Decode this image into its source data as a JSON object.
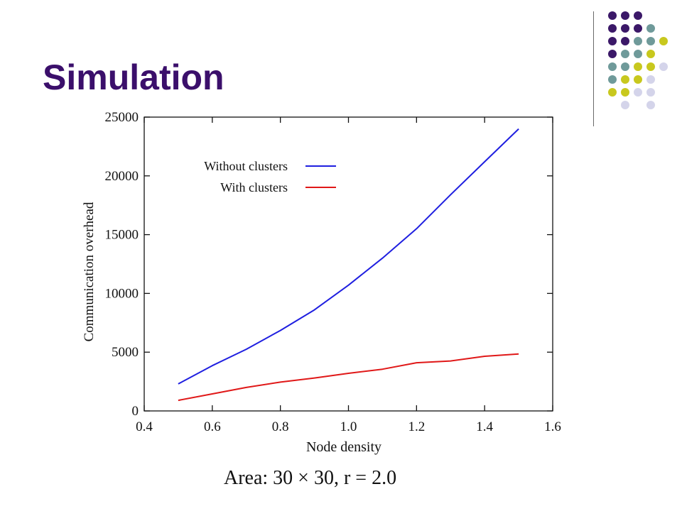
{
  "slide": {
    "title": "Simulation",
    "caption": "Area: 30 × 30, r = 2.0"
  },
  "decoration": {
    "dot_colors": {
      "purple": "#3b1868",
      "teal": "#6f9a9a",
      "yellow": "#c8c81e",
      "lavender": "#d4d4ea"
    },
    "dot_grid": [
      [
        "purple",
        "purple",
        "purple",
        "",
        ""
      ],
      [
        "purple",
        "purple",
        "purple",
        "teal",
        ""
      ],
      [
        "purple",
        "purple",
        "teal",
        "teal",
        "yellow"
      ],
      [
        "purple",
        "teal",
        "teal",
        "yellow",
        ""
      ],
      [
        "teal",
        "teal",
        "yellow",
        "yellow",
        "lavender"
      ],
      [
        "teal",
        "yellow",
        "yellow",
        "lavender",
        ""
      ],
      [
        "yellow",
        "yellow",
        "lavender",
        "lavender",
        ""
      ],
      [
        "",
        "lavender",
        "",
        "lavender",
        ""
      ]
    ]
  },
  "chart_data": {
    "type": "line",
    "title": "",
    "xlabel": "Node density",
    "ylabel": "Communication overhead",
    "xlim": [
      0.4,
      1.6
    ],
    "ylim": [
      0,
      25000
    ],
    "xticks": [
      "0.4",
      "0.6",
      "0.8",
      "1.0",
      "1.2",
      "1.4",
      "1.6"
    ],
    "xtick_values": [
      0.4,
      0.6,
      0.8,
      1.0,
      1.2,
      1.4,
      1.6
    ],
    "yticks": [
      "0",
      "5000",
      "10000",
      "15000",
      "20000",
      "25000"
    ],
    "ytick_values": [
      0,
      5000,
      10000,
      15000,
      20000,
      25000
    ],
    "grid": false,
    "legend_position": "top-left",
    "series": [
      {
        "name": "Without clusters",
        "color": "#1f1fe0",
        "x": [
          0.5,
          0.6,
          0.7,
          0.8,
          0.9,
          1.0,
          1.1,
          1.2,
          1.3,
          1.4,
          1.5
        ],
        "y": [
          2300,
          3850,
          5250,
          6850,
          8600,
          10700,
          13000,
          15500,
          18400,
          21200,
          24000
        ]
      },
      {
        "name": "With clusters",
        "color": "#e01818",
        "x": [
          0.5,
          0.6,
          0.7,
          0.8,
          0.9,
          1.0,
          1.1,
          1.2,
          1.3,
          1.4,
          1.5
        ],
        "y": [
          900,
          1450,
          2000,
          2450,
          2800,
          3200,
          3550,
          4100,
          4250,
          4650,
          4850
        ]
      }
    ]
  }
}
